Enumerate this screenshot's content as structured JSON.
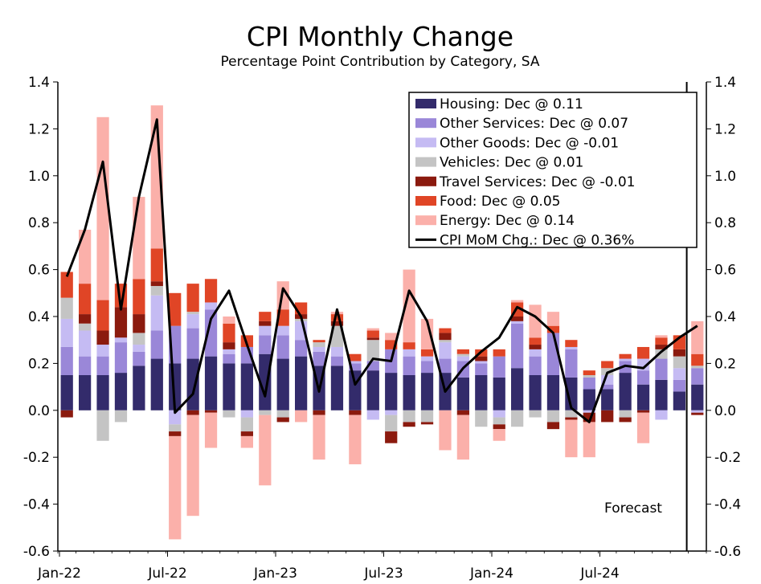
{
  "chart_data": {
    "type": "bar",
    "stacked": true,
    "title": "CPI Monthly Change",
    "subtitle": "Percentage Point Contribution by Category, SA",
    "ylim": [
      -0.6,
      1.4
    ],
    "yticks": [
      -0.6,
      -0.4,
      -0.2,
      0.0,
      0.2,
      0.4,
      0.6,
      0.8,
      1.0,
      1.2,
      1.4
    ],
    "ytick_labels": [
      "-0.6",
      "-0.4",
      "-0.2",
      "0.0",
      "0.2",
      "0.4",
      "0.6",
      "0.8",
      "1.0",
      "1.2",
      "1.4"
    ],
    "ytick_labels_right": [
      "-0.6",
      "-0.4",
      "-0.2",
      "0.0",
      "0.2",
      "0.4",
      "0.6",
      "0.8",
      "1.0",
      "1.2",
      "1.4"
    ],
    "x_tick_labels": [
      {
        "index": 0,
        "label": "Jan-22"
      },
      {
        "index": 6,
        "label": "Jul-22"
      },
      {
        "index": 12,
        "label": "Jan-23"
      },
      {
        "index": 18,
        "label": "Jul-23"
      },
      {
        "index": 24,
        "label": "Jan-24"
      },
      {
        "index": 30,
        "label": "Jul-24"
      }
    ],
    "categories": [
      "Jan-22",
      "Feb-22",
      "Mar-22",
      "Apr-22",
      "May-22",
      "Jun-22",
      "Jul-22",
      "Aug-22",
      "Sep-22",
      "Oct-22",
      "Nov-22",
      "Dec-22",
      "Jan-23",
      "Feb-23",
      "Mar-23",
      "Apr-23",
      "May-23",
      "Jun-23",
      "Jul-23",
      "Aug-23",
      "Sep-23",
      "Oct-23",
      "Nov-23",
      "Dec-23",
      "Jan-24",
      "Feb-24",
      "Mar-24",
      "Apr-24",
      "May-24",
      "Jun-24",
      "Jul-24",
      "Aug-24",
      "Sep-24",
      "Oct-24",
      "Nov-24",
      "Dec-24"
    ],
    "forecast_start_index": 35,
    "forecast_label": "Forecast",
    "series": [
      {
        "name": "Housing",
        "legend": "Housing: Dec @ 0.11",
        "color": "#332B6B",
        "values": [
          0.15,
          0.15,
          0.15,
          0.16,
          0.19,
          0.22,
          0.2,
          0.22,
          0.23,
          0.2,
          0.2,
          0.24,
          0.22,
          0.23,
          0.19,
          0.19,
          0.17,
          0.17,
          0.16,
          0.15,
          0.16,
          0.16,
          0.14,
          0.15,
          0.14,
          0.18,
          0.15,
          0.15,
          0.14,
          0.09,
          0.09,
          0.16,
          0.11,
          0.13,
          0.08,
          0.11
        ]
      },
      {
        "name": "Other Services",
        "legend": "Other Services: Dec @ 0.07",
        "color": "#9A87D8",
        "values": [
          0.12,
          0.08,
          0.08,
          0.13,
          0.06,
          0.12,
          0.16,
          0.13,
          0.2,
          0.04,
          0.07,
          0.08,
          0.1,
          0.07,
          0.06,
          0.04,
          0.03,
          0.04,
          0.1,
          0.08,
          0.05,
          0.06,
          0.07,
          0.05,
          0.09,
          0.19,
          0.08,
          0.18,
          0.12,
          0.05,
          0.02,
          0.05,
          0.06,
          0.09,
          0.05,
          0.07
        ]
      },
      {
        "name": "Other Goods",
        "legend": "Other Goods: Dec @ -0.01",
        "color": "#C5BBF3",
        "values": [
          0.12,
          0.11,
          0.05,
          0.02,
          0.03,
          0.15,
          -0.06,
          0.06,
          0.03,
          0.02,
          -0.03,
          0.04,
          0.04,
          0.08,
          0.02,
          0.04,
          0.01,
          -0.04,
          -0.02,
          0.03,
          0.02,
          0.07,
          0.02,
          0.01,
          -0.03,
          0.01,
          0.03,
          0.0,
          0.01,
          -0.01,
          0.04,
          0.01,
          0.05,
          -0.04,
          0.05,
          -0.01
        ]
      },
      {
        "name": "Vehicles",
        "legend": "Vehicles: Dec @ 0.01",
        "color": "#C4C4C4",
        "values": [
          0.09,
          0.03,
          -0.13,
          -0.05,
          0.05,
          0.04,
          -0.03,
          0.01,
          0.0,
          -0.03,
          -0.06,
          -0.02,
          -0.03,
          0.01,
          0.02,
          0.09,
          0.0,
          0.09,
          -0.07,
          -0.05,
          -0.05,
          0.01,
          0.01,
          -0.07,
          -0.03,
          -0.07,
          -0.03,
          -0.05,
          -0.03,
          0.01,
          0.03,
          -0.03,
          0.0,
          0.04,
          0.05,
          0.01
        ]
      },
      {
        "name": "Travel Services",
        "legend": "Travel Services: Dec @ -0.01",
        "color": "#8B1A0E",
        "values": [
          -0.03,
          0.04,
          0.06,
          0.13,
          0.08,
          0.02,
          -0.02,
          -0.02,
          -0.01,
          0.03,
          -0.02,
          0.02,
          -0.02,
          0.02,
          -0.02,
          0.02,
          -0.02,
          0.01,
          -0.05,
          -0.02,
          -0.01,
          0.03,
          -0.02,
          0.02,
          -0.02,
          0.02,
          0.02,
          -0.03,
          -0.01,
          -0.04,
          -0.05,
          -0.02,
          -0.01,
          0.02,
          0.03,
          -0.01
        ]
      },
      {
        "name": "Food",
        "legend": "Food: Dec @ 0.05",
        "color": "#E04526",
        "values": [
          0.11,
          0.13,
          0.13,
          0.1,
          0.15,
          0.14,
          0.14,
          0.12,
          0.1,
          0.08,
          0.05,
          0.04,
          0.07,
          0.05,
          0.01,
          0.03,
          0.03,
          0.03,
          0.04,
          0.03,
          0.03,
          0.02,
          0.02,
          0.03,
          0.03,
          0.06,
          0.03,
          0.03,
          0.03,
          0.02,
          0.03,
          0.02,
          0.05,
          0.03,
          0.06,
          0.05
        ]
      },
      {
        "name": "Energy",
        "legend": "Energy: Dec @ 0.14",
        "color": "#FBB0AA",
        "values": [
          -0.0,
          0.23,
          0.78,
          0.0,
          0.35,
          0.61,
          -0.44,
          -0.43,
          -0.15,
          0.03,
          -0.05,
          -0.3,
          0.12,
          -0.05,
          -0.19,
          0.01,
          -0.21,
          0.01,
          0.03,
          0.31,
          0.13,
          -0.17,
          -0.19,
          0.0,
          -0.05,
          0.01,
          0.14,
          0.06,
          -0.16,
          -0.15,
          0.0,
          0.0,
          -0.13,
          0.01,
          -0.0,
          0.14
        ]
      }
    ],
    "line": {
      "name": "CPI MoM Chg.",
      "legend": "CPI MoM Chg.: Dec @ 0.36%",
      "color": "#000000",
      "values": [
        0.57,
        0.77,
        1.06,
        0.43,
        0.91,
        1.24,
        -0.01,
        0.07,
        0.39,
        0.51,
        0.28,
        0.06,
        0.52,
        0.4,
        0.08,
        0.43,
        0.11,
        0.22,
        0.21,
        0.51,
        0.38,
        0.08,
        0.18,
        0.25,
        0.31,
        0.44,
        0.4,
        0.33,
        0.01,
        -0.05,
        0.16,
        0.19,
        0.18,
        0.25,
        0.31,
        0.36
      ]
    }
  }
}
